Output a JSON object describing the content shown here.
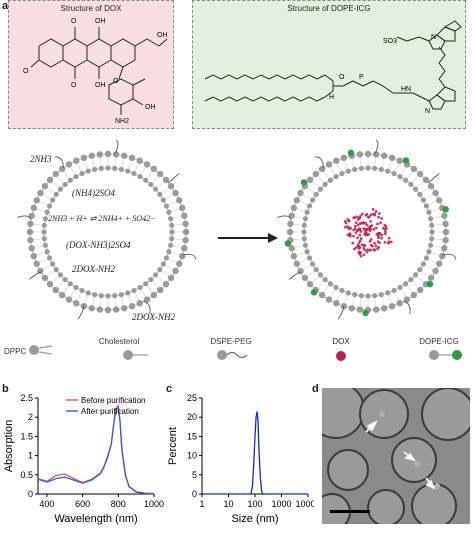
{
  "panel_letters": {
    "a": "a",
    "b": "b",
    "c": "c",
    "d": "d"
  },
  "dox_box": {
    "title": "Structure of DOX",
    "color": "#f8dede"
  },
  "icg_box": {
    "title": "Structure of DOPE-ICG",
    "color": "#e2f0de"
  },
  "structure_labels": {
    "oh1": "OH",
    "oh2": "OH",
    "oh3": "OH",
    "oh4": "OH",
    "o_top": "O",
    "o_left": "O",
    "o_me": "O",
    "o_ring": "O",
    "o_sugar": "O",
    "nh2": "NH2",
    "so3": "SO3",
    "icg_n": "N",
    "icg_n2": "N",
    "hn": "HN",
    "o_e": "O",
    "p": "P",
    "h": "H"
  },
  "liposome_left": {
    "eq_2nh3": "2NH3",
    "eq_salt": "(NH4)2SO4",
    "eq_main": "2NH3 + H+ ⇌ 2NH4+ + SO42−",
    "eq_dox_salt": "(DOX-NH3)2SO4",
    "eq_dox": "2DOX-NH2",
    "eq_dox_out": "2DOX-NH2"
  },
  "liposome_right": {
    "dox_color": "#b8234a",
    "icg_color": "#2e9a46"
  },
  "legend": [
    {
      "label": "DPPC"
    },
    {
      "label": "Cholesterol"
    },
    {
      "label": "DSPE-PEG"
    },
    {
      "label": "DOX"
    },
    {
      "label": "DOPE-ICG"
    }
  ],
  "chart_data": [
    {
      "type": "line",
      "panel": "b",
      "xlabel": "Wavelength (nm)",
      "ylabel": "Absorption",
      "xlim": [
        350,
        1000
      ],
      "ylim": [
        0,
        2.5
      ],
      "xticks": [
        400,
        600,
        800,
        1000
      ],
      "yticks": [
        0,
        0.5,
        1,
        1.5,
        2,
        2.5
      ],
      "series": [
        {
          "name": "Before purification",
          "color": "#e0506a",
          "x": [
            350,
            400,
            450,
            500,
            550,
            600,
            650,
            700,
            720,
            740,
            760,
            780,
            790,
            800,
            810,
            820,
            840,
            860,
            900,
            950,
            1000
          ],
          "y": [
            0.4,
            0.33,
            0.48,
            0.52,
            0.4,
            0.3,
            0.38,
            0.55,
            0.72,
            0.98,
            1.3,
            2.05,
            2.25,
            2.3,
            1.9,
            1.2,
            0.5,
            0.2,
            0.06,
            0.02,
            0.01
          ]
        },
        {
          "name": "After purification",
          "color": "#4060c0",
          "x": [
            350,
            400,
            450,
            500,
            550,
            600,
            650,
            700,
            720,
            740,
            760,
            780,
            790,
            800,
            810,
            820,
            840,
            860,
            900,
            950,
            1000
          ],
          "y": [
            0.38,
            0.31,
            0.4,
            0.44,
            0.36,
            0.28,
            0.36,
            0.53,
            0.7,
            0.95,
            1.28,
            2.0,
            2.2,
            2.25,
            1.85,
            1.15,
            0.48,
            0.19,
            0.05,
            0.02,
            0.01
          ]
        }
      ]
    },
    {
      "type": "line",
      "panel": "c",
      "xlabel": "Size (nm)",
      "ylabel": "Percent",
      "xscale": "log",
      "xlim": [
        1,
        10000
      ],
      "ylim": [
        0,
        25
      ],
      "xticks": [
        1,
        10,
        100,
        1000,
        10000
      ],
      "xticklabels": [
        "1",
        "10",
        "100",
        "1000",
        "10000"
      ],
      "yticks": [
        0,
        5,
        10,
        15,
        20,
        25
      ],
      "series": [
        {
          "color": "#1a2fa0",
          "x": [
            1,
            50,
            70,
            80,
            90,
            100,
            110,
            120,
            130,
            140,
            160,
            180,
            200,
            10000
          ],
          "y": [
            0,
            0,
            0,
            2,
            8,
            15,
            20,
            21.5,
            19,
            12,
            4,
            0.5,
            0,
            0
          ]
        }
      ]
    }
  ],
  "micrograph": {
    "background": "#8a8a8a"
  }
}
